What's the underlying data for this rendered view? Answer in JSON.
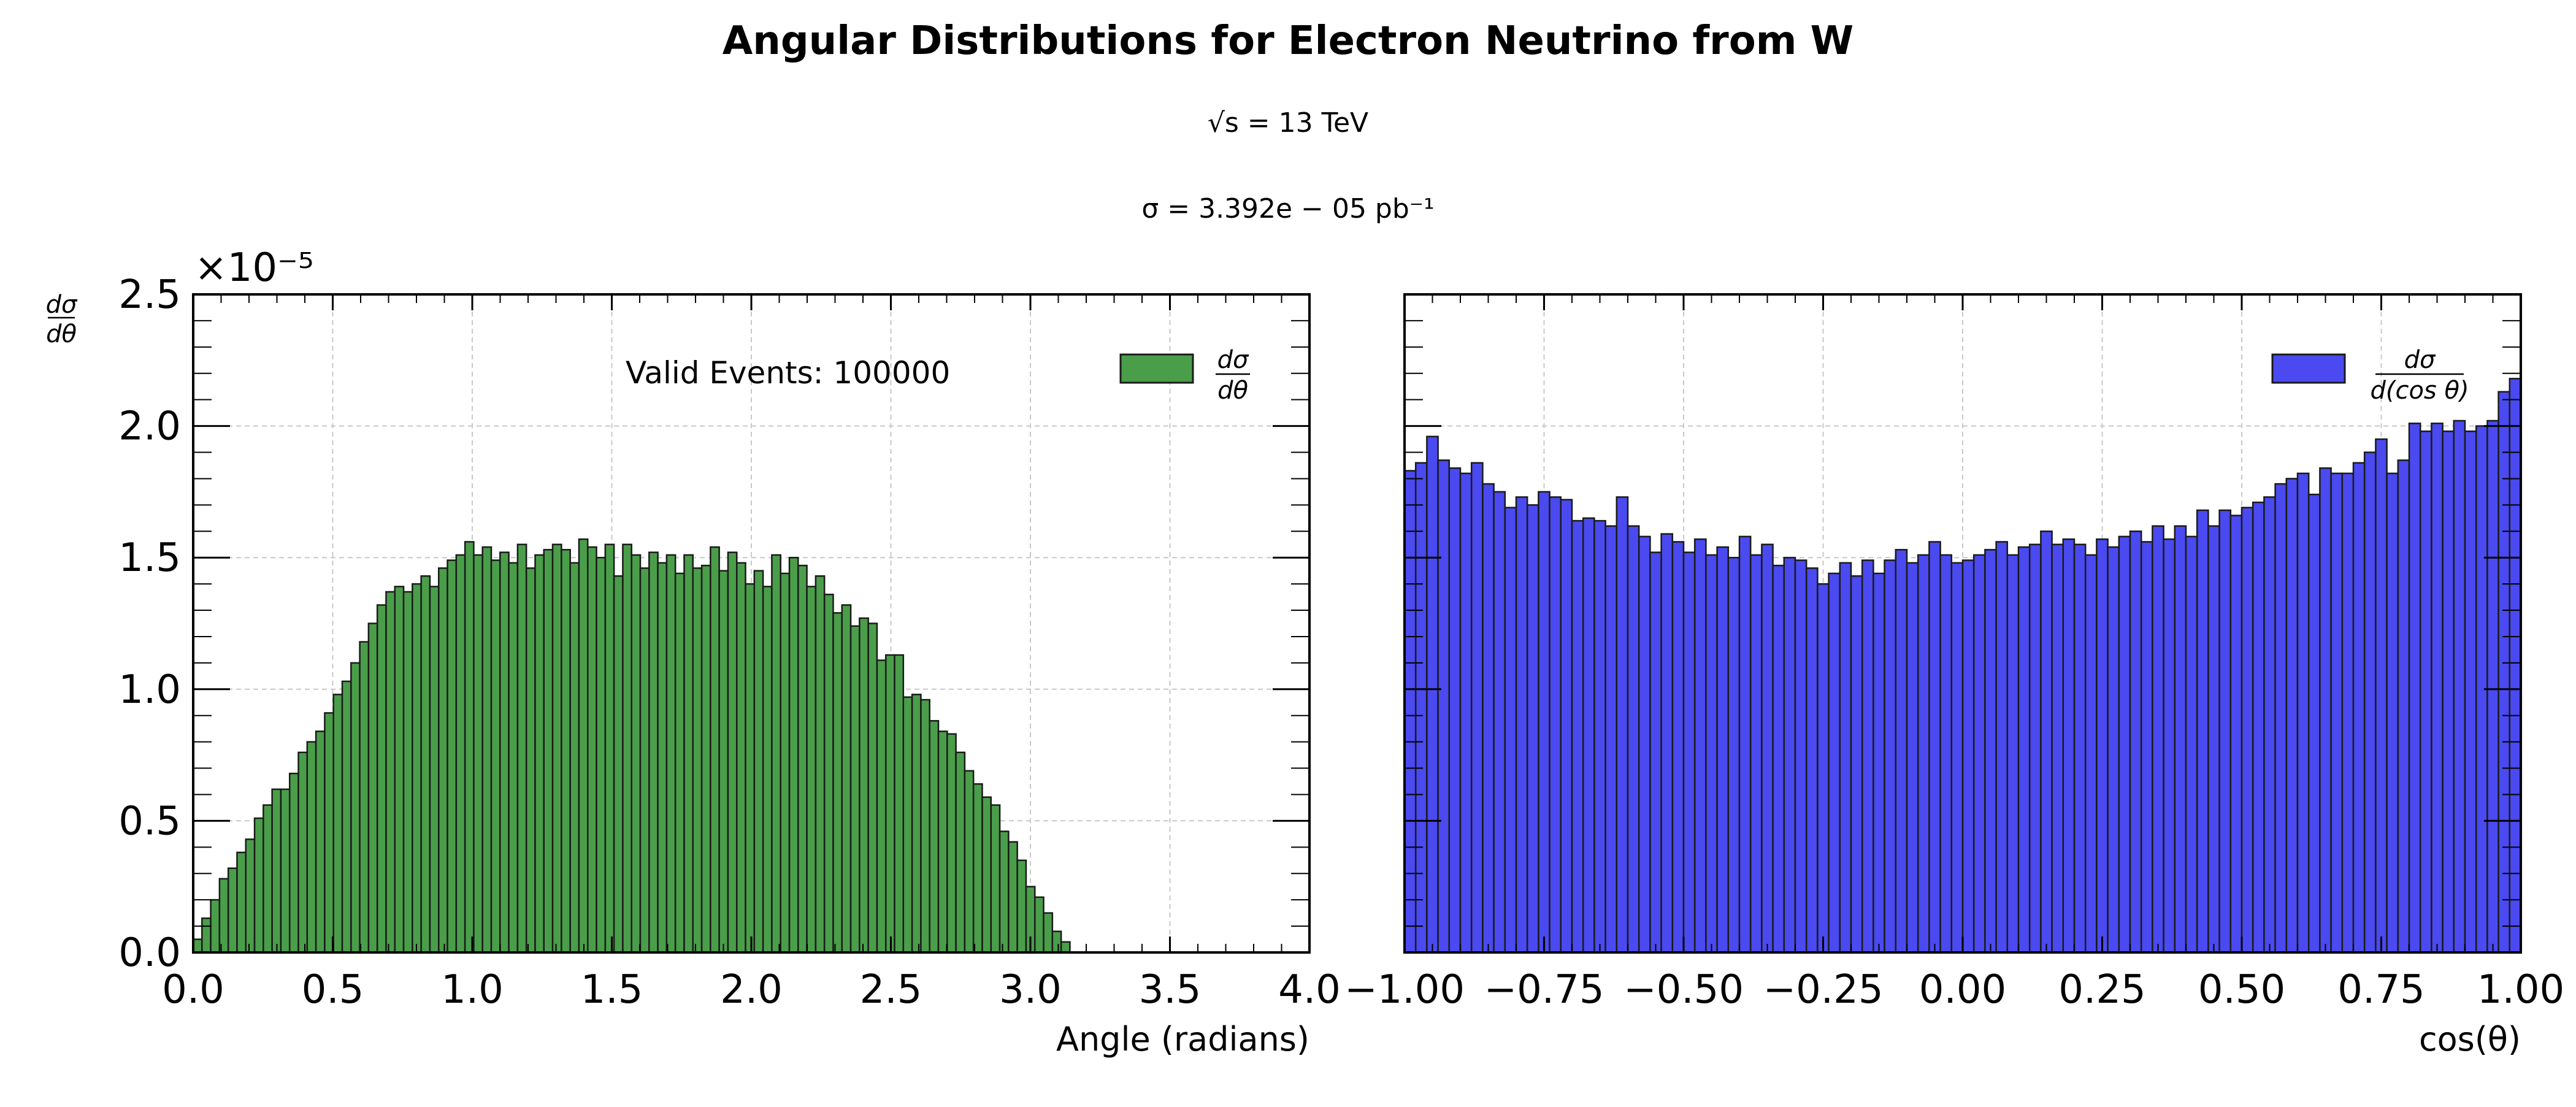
{
  "figure": {
    "title": "Angular Distributions for Electron Neutrino from W",
    "energy_label": "√s = 13 TeV",
    "cross_section_label": "σ = 3.392e − 05 pb⁻¹"
  },
  "chart_data": [
    {
      "type": "bar",
      "title": "",
      "xlabel": "Angle (radians)",
      "ylabel": "dσ/dθ",
      "ylabel_num": "dσ",
      "ylabel_den": "dθ",
      "y_offset_label": "×10⁻⁵",
      "xlim": [
        0.0,
        4.0
      ],
      "ylim": [
        0.0,
        2.5e-05
      ],
      "x_ticks": [
        0.0,
        0.5,
        1.0,
        1.5,
        2.0,
        2.5,
        3.0,
        3.5,
        4.0
      ],
      "x_tick_labels": [
        "0.0",
        "0.5",
        "1.0",
        "1.5",
        "2.0",
        "2.5",
        "3.0",
        "3.5",
        "4.0"
      ],
      "y_ticks": [
        0.0,
        5e-06,
        1e-05,
        1.5e-05,
        2e-05,
        2.5e-05
      ],
      "y_tick_labels": [
        "0.0",
        "0.5",
        "1.0",
        "1.5",
        "2.0",
        "2.5"
      ],
      "grid": true,
      "annotation": "Valid Events: 100000",
      "legend": {
        "position": "top-right",
        "num": "dσ",
        "den": "dθ",
        "label": "dσ/dθ"
      },
      "color": "#4a9e4a",
      "bin_start": 0.0,
      "bin_width": 0.0314159,
      "values_e5": [
        0.05,
        0.13,
        0.2,
        0.28,
        0.32,
        0.38,
        0.43,
        0.51,
        0.56,
        0.62,
        0.62,
        0.68,
        0.76,
        0.8,
        0.84,
        0.91,
        0.98,
        1.03,
        1.1,
        1.18,
        1.25,
        1.32,
        1.37,
        1.39,
        1.37,
        1.4,
        1.43,
        1.39,
        1.46,
        1.49,
        1.51,
        1.56,
        1.51,
        1.54,
        1.49,
        1.52,
        1.48,
        1.55,
        1.46,
        1.51,
        1.53,
        1.55,
        1.53,
        1.48,
        1.57,
        1.54,
        1.5,
        1.55,
        1.43,
        1.55,
        1.51,
        1.46,
        1.52,
        1.48,
        1.51,
        1.44,
        1.51,
        1.46,
        1.47,
        1.54,
        1.45,
        1.52,
        1.48,
        1.4,
        1.45,
        1.39,
        1.51,
        1.44,
        1.5,
        1.47,
        1.39,
        1.43,
        1.36,
        1.29,
        1.32,
        1.24,
        1.27,
        1.25,
        1.11,
        1.13,
        1.13,
        0.97,
        0.98,
        0.96,
        0.88,
        0.84,
        0.83,
        0.76,
        0.69,
        0.64,
        0.59,
        0.56,
        0.46,
        0.42,
        0.35,
        0.25,
        0.21,
        0.15,
        0.08,
        0.04
      ]
    },
    {
      "type": "bar",
      "title": "",
      "xlabel": "cos(θ)",
      "ylabel": "",
      "xlim": [
        -1.0,
        1.0
      ],
      "ylim": [
        0.0,
        2.5e-05
      ],
      "x_ticks": [
        -1.0,
        -0.75,
        -0.5,
        -0.25,
        0.0,
        0.25,
        0.5,
        0.75,
        1.0
      ],
      "x_tick_labels": [
        "−1.00",
        "−0.75",
        "−0.50",
        "−0.25",
        "0.00",
        "0.25",
        "0.50",
        "0.75",
        "1.00"
      ],
      "y_ticks": [
        0.0,
        5e-06,
        1e-05,
        1.5e-05,
        2e-05,
        2.5e-05
      ],
      "grid": true,
      "legend": {
        "position": "top-right",
        "num": "dσ",
        "den": "d(cos θ)",
        "label": "dσ/d(cos θ)"
      },
      "color": "#4a4af0",
      "bin_start": -1.0,
      "bin_width": 0.02,
      "values_e5": [
        1.83,
        1.86,
        1.96,
        1.87,
        1.84,
        1.82,
        1.86,
        1.78,
        1.75,
        1.69,
        1.73,
        1.7,
        1.75,
        1.73,
        1.72,
        1.64,
        1.65,
        1.64,
        1.62,
        1.73,
        1.62,
        1.58,
        1.52,
        1.59,
        1.56,
        1.52,
        1.57,
        1.51,
        1.54,
        1.5,
        1.58,
        1.51,
        1.55,
        1.47,
        1.5,
        1.49,
        1.46,
        1.4,
        1.44,
        1.48,
        1.43,
        1.49,
        1.44,
        1.49,
        1.53,
        1.48,
        1.51,
        1.56,
        1.51,
        1.48,
        1.49,
        1.51,
        1.53,
        1.56,
        1.51,
        1.54,
        1.55,
        1.6,
        1.55,
        1.57,
        1.55,
        1.51,
        1.57,
        1.54,
        1.58,
        1.6,
        1.56,
        1.62,
        1.57,
        1.62,
        1.58,
        1.68,
        1.62,
        1.68,
        1.66,
        1.69,
        1.71,
        1.73,
        1.78,
        1.8,
        1.82,
        1.74,
        1.84,
        1.82,
        1.82,
        1.86,
        1.9,
        1.95,
        1.82,
        1.87,
        2.01,
        1.98,
        2.01,
        1.98,
        2.02,
        1.98,
        2.0,
        2.02,
        2.13,
        2.18
      ]
    }
  ]
}
